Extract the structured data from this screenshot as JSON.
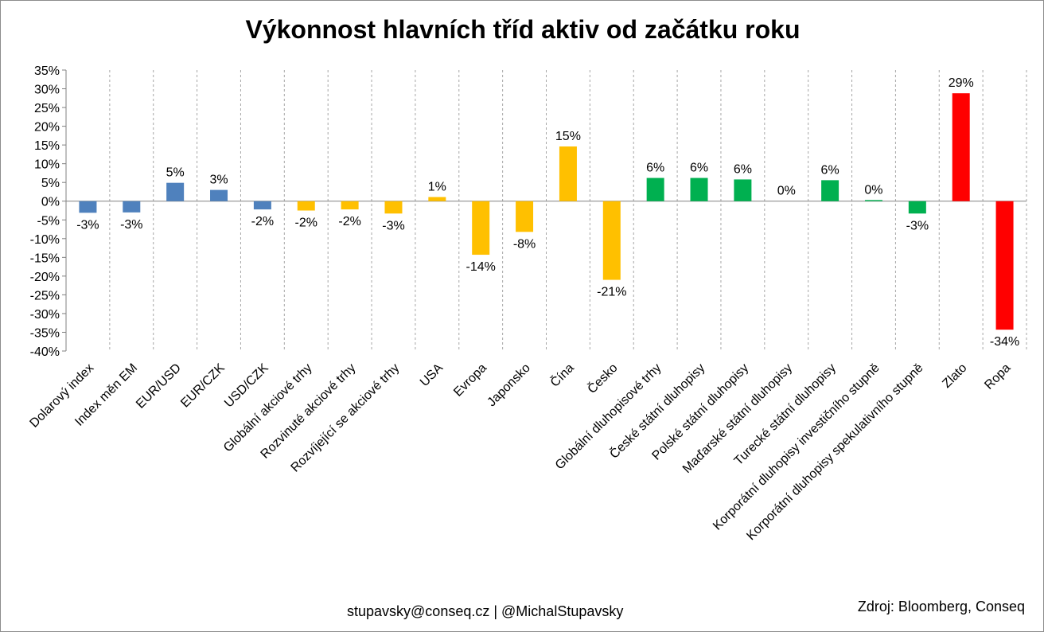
{
  "footer": {
    "contact": "stupavsky@conseq.cz  |  @MichalStupavsky",
    "source": "Zdroj: Bloomberg, Conseq"
  },
  "colors": {
    "currency": "#4f81bd",
    "equity": "#ffc000",
    "bond": "#00b050",
    "commodity": "#ff0000"
  },
  "chart_data": {
    "type": "bar",
    "title": "Výkonnost hlavních tříd aktiv od začátku roku",
    "ylim": [
      -40,
      35
    ],
    "yticks": [
      "35%",
      "30%",
      "25%",
      "20%",
      "15%",
      "10%",
      "5%",
      "0%",
      "-5%",
      "-10%",
      "-15%",
      "-20%",
      "-25%",
      "-30%",
      "-35%",
      "-40%"
    ],
    "ytick_values": [
      35,
      30,
      25,
      20,
      15,
      10,
      5,
      0,
      -5,
      -10,
      -15,
      -20,
      -25,
      -30,
      -35,
      -40
    ],
    "grid": "vertical dashed",
    "categories": [
      "Dolarový index",
      "Index měn EM",
      "EUR/USD",
      "EUR/CZK",
      "USD/CZK",
      "Globální akciové trhy",
      "Rozvinuté akciové trhy",
      "Rozvíjející se akciové trhy",
      "USA",
      "Evropa",
      "Japonsko",
      "Čína",
      "Česko",
      "Globální dluhopisové trhy",
      "České státní dluhopisy",
      "Polské státní dluhopisy",
      "Maďarské státní dluhopisy",
      "Turecké státní dluhopisy",
      "Korporátní dluhopisy investičního stupně",
      "Korporátní dluhopisy spekulativního stupně",
      "Zlato",
      "Ropa"
    ],
    "values": [
      -3.1,
      -3.0,
      4.9,
      3.0,
      -2.2,
      -2.5,
      -2.2,
      -3.3,
      1.1,
      -14.3,
      -8.2,
      14.6,
      -21.0,
      6.2,
      6.2,
      5.8,
      0.0,
      5.6,
      0.3,
      -3.3,
      28.8,
      -34.3
    ],
    "data_labels": [
      "-3%",
      "-3%",
      "5%",
      "3%",
      "-2%",
      "-2%",
      "-2%",
      "-3%",
      "1%",
      "-14%",
      "-8%",
      "15%",
      "-21%",
      "6%",
      "6%",
      "6%",
      "0%",
      "6%",
      "0%",
      "-3%",
      "29%",
      "-34%"
    ],
    "groups": [
      "currency",
      "currency",
      "currency",
      "currency",
      "currency",
      "equity",
      "equity",
      "equity",
      "equity",
      "equity",
      "equity",
      "equity",
      "equity",
      "bond",
      "bond",
      "bond",
      "bond",
      "bond",
      "bond",
      "bond",
      "commodity",
      "commodity"
    ]
  }
}
